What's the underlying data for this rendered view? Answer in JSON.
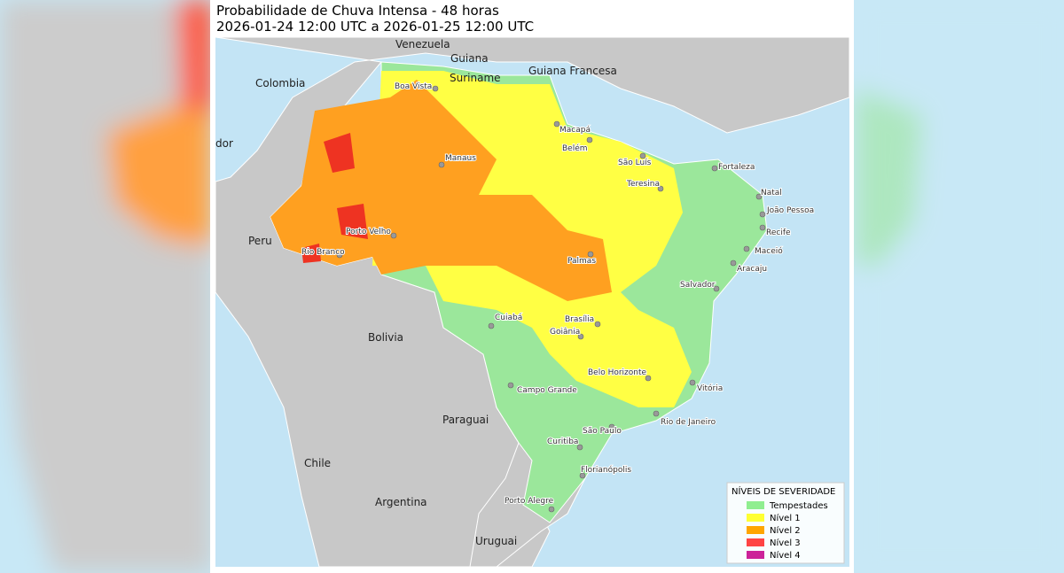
{
  "header": {
    "title": "Probabilidade de Chuva Intensa - 48 horas",
    "subtitle": "2026-01-24 12:00 UTC a 2026-01-25 12:00 UTC"
  },
  "countries": [
    "Venezuela",
    "Guiana",
    "Suriname",
    "Guiana Francesa",
    "Colombia",
    "dor",
    "Peru",
    "Bolivia",
    "Paraguai",
    "Chile",
    "Argentina",
    "Uruguai"
  ],
  "cities": [
    "Boa Vista",
    "Manaus",
    "Macapá",
    "Belém",
    "São Luís",
    "Fortaleza",
    "Teresina",
    "Natal",
    "João Pessoa",
    "Recife",
    "Maceió",
    "Aracaju",
    "Porto Velho",
    "Rio Branco",
    "Palmas",
    "Salvador",
    "Cuiabá",
    "Brasília",
    "Goiânia",
    "Belo Horizonte",
    "Vitória",
    "Campo Grande",
    "Rio de Janeiro",
    "São Paulo",
    "Curitiba",
    "Florianópolis",
    "Porto Alegre"
  ],
  "legend": {
    "title": "NÍVEIS DE SEVERIDADE",
    "items": [
      {
        "label": "Tempestades",
        "color": "#90ee90"
      },
      {
        "label": "Nível 1",
        "color": "#ffff33"
      },
      {
        "label": "Nível 2",
        "color": "#ffa500"
      },
      {
        "label": "Nível 3",
        "color": "#ff4444"
      },
      {
        "label": "Nível 4",
        "color": "#cc2299"
      }
    ]
  }
}
